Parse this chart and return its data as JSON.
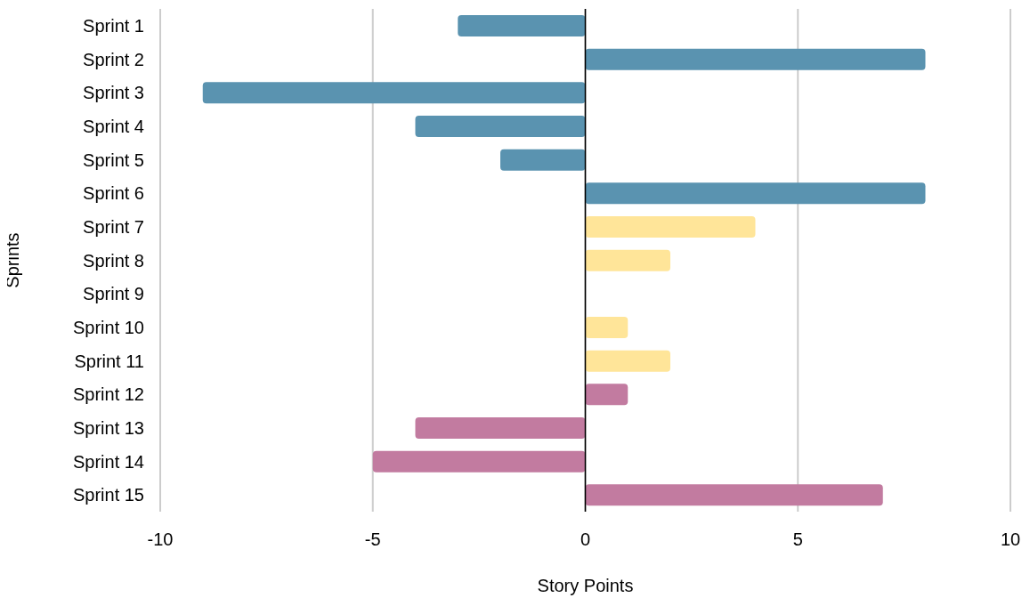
{
  "chart_data": {
    "type": "bar",
    "orientation": "horizontal",
    "xlabel": "Story Points",
    "ylabel": "Sprints",
    "categories": [
      "Sprint 1",
      "Sprint 2",
      "Sprint 3",
      "Sprint 4",
      "Sprint 5",
      "Sprint 6",
      "Sprint 7",
      "Sprint 8",
      "Sprint 9",
      "Sprint 10",
      "Sprint 11",
      "Sprint 12",
      "Sprint 13",
      "Sprint 14",
      "Sprint 15"
    ],
    "values": [
      -3,
      8,
      -9,
      -4,
      -2,
      8,
      4,
      2,
      0,
      1,
      2,
      1,
      -4,
      -5,
      7
    ],
    "colors": [
      "#5a93b0",
      "#5a93b0",
      "#5a93b0",
      "#5a93b0",
      "#5a93b0",
      "#5a93b0",
      "#ffe599",
      "#ffe599",
      "#ffe599",
      "#ffe599",
      "#ffe599",
      "#c27ba0",
      "#c27ba0",
      "#c27ba0",
      "#c27ba0"
    ],
    "xlim": [
      -10,
      10
    ],
    "xticks": [
      -10,
      -5,
      0,
      5,
      10
    ],
    "grid": "x",
    "ref_lines": [
      {
        "axis": "x",
        "value": 0,
        "color": "#000000"
      }
    ]
  }
}
